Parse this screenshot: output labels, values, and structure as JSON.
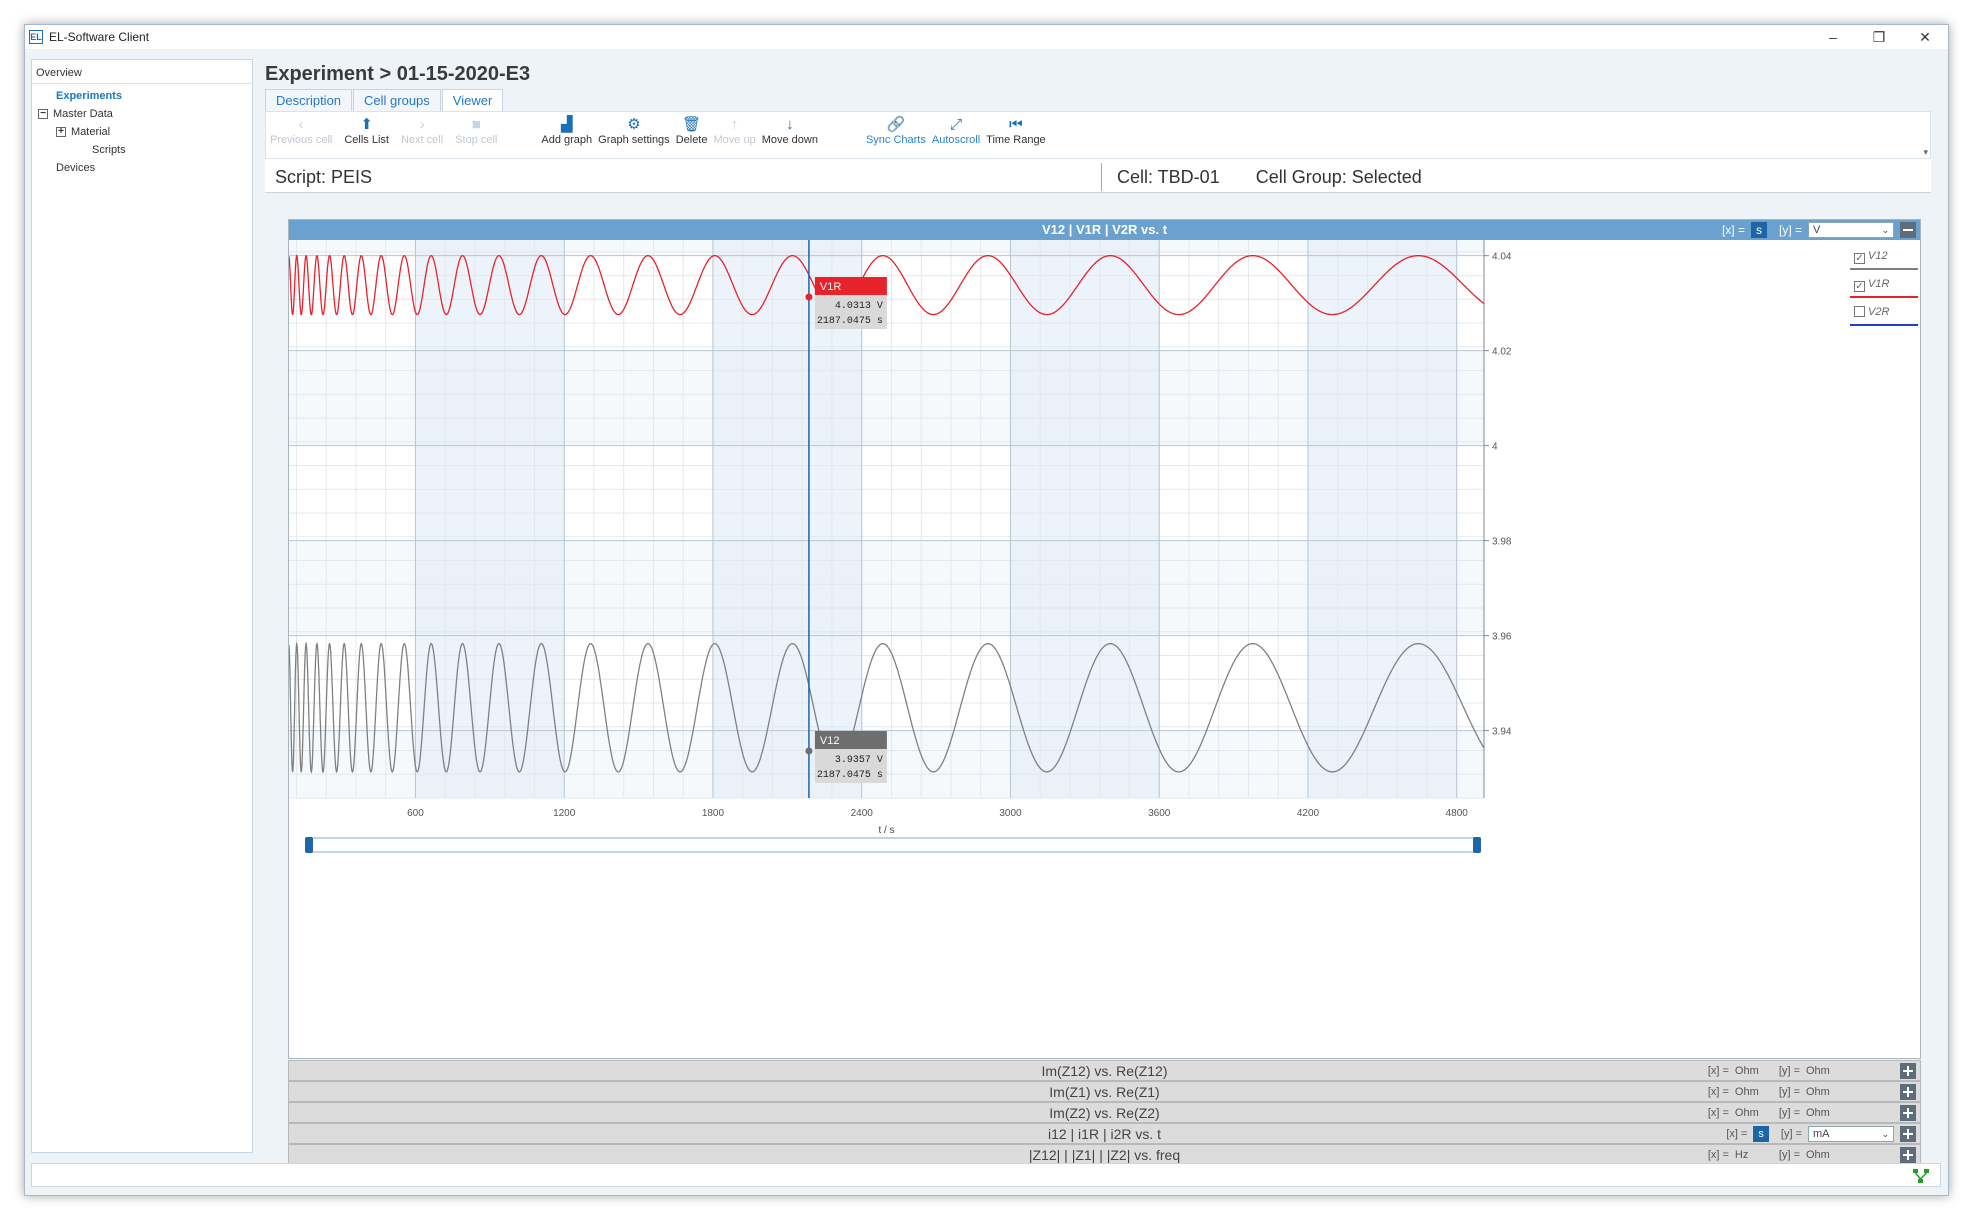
{
  "window": {
    "logo": "EL",
    "title": "EL-Software Client",
    "controls": [
      "–",
      "❐",
      "✕"
    ]
  },
  "sidebar": {
    "header": "Overview",
    "items": [
      {
        "label": "Experiments",
        "active": true,
        "indent": 0,
        "toggle": ""
      },
      {
        "label": "Master Data",
        "indent": 0,
        "toggle": "−"
      },
      {
        "label": "Material",
        "indent": 1,
        "toggle": "+"
      },
      {
        "label": "Scripts",
        "indent": 2,
        "toggle": ""
      },
      {
        "label": "Devices",
        "indent": 0,
        "toggle": ""
      }
    ]
  },
  "breadcrumb": "Experiment > 01-15-2020-E3",
  "tabs": [
    {
      "label": "Description",
      "selected": false
    },
    {
      "label": "Cell groups",
      "selected": false
    },
    {
      "label": "Viewer",
      "selected": true
    }
  ],
  "toolbar": [
    {
      "label": "Previous cell",
      "icon": "chevron-left-icon",
      "glyph": "‹",
      "disabled": true
    },
    {
      "label": "Cells List",
      "icon": "arrow-up-icon",
      "glyph": "⬆",
      "disabled": false
    },
    {
      "label": "Next cell",
      "icon": "chevron-right-icon",
      "glyph": "›",
      "disabled": true
    },
    {
      "label": "Stop cell",
      "icon": "stop-icon",
      "glyph": "■",
      "disabled": true
    },
    {
      "label": "Add graph",
      "icon": "chart-icon",
      "glyph": "▟",
      "disabled": false
    },
    {
      "label": "Graph settings",
      "icon": "gear-icon",
      "glyph": "⚙",
      "disabled": false
    },
    {
      "label": "Delete",
      "icon": "trash-icon",
      "glyph": "🗑",
      "disabled": false
    },
    {
      "label": "Move up",
      "icon": "arrow-up-icon",
      "glyph": "↑",
      "disabled": true
    },
    {
      "label": "Move down",
      "icon": "arrow-down-icon",
      "glyph": "↓",
      "disabled": false
    },
    {
      "label": "Sync Charts",
      "icon": "link-icon",
      "glyph": "🔗",
      "disabled": false,
      "blue": true
    },
    {
      "label": "Autoscroll",
      "icon": "expand-icon",
      "glyph": "⤢",
      "disabled": false,
      "blue": true
    },
    {
      "label": "Time Range",
      "icon": "skip-icon",
      "glyph": "⏮",
      "disabled": false
    }
  ],
  "script_label": "Script: PEIS",
  "cell_label": "Cell:  TBD-01",
  "cell_group_label": "Cell Group:  Selected",
  "main_graph": {
    "title": "V12 | V1R | V2R vs. t",
    "x_unit_label": "[x] =",
    "x_unit": "s",
    "y_unit_label": "[y] =",
    "y_unit": "V",
    "legend": [
      {
        "name": "V12",
        "checked": true,
        "color": "#808080"
      },
      {
        "name": "V1R",
        "checked": true,
        "color": "#e8222a"
      },
      {
        "name": "V2R",
        "checked": false,
        "color": "#1d3fd8"
      }
    ]
  },
  "chart_data": {
    "type": "line",
    "title": "V12 | V1R | V2R vs. t",
    "xlabel": "t / s",
    "ylabel": "",
    "xlim": [
      90,
      4910
    ],
    "ylim": [
      3.9258,
      4.0433
    ],
    "x_ticks": [
      600,
      1200,
      1800,
      2400,
      3000,
      3600,
      4200,
      4800
    ],
    "y_ticks": [
      4.04,
      4.02,
      4,
      3.98,
      3.96,
      3.94
    ],
    "y_tick_labels": [
      "4.04",
      "4.02",
      "4",
      "3.98",
      "3.96",
      "3.94"
    ],
    "series": [
      {
        "name": "V1R",
        "color": "#e8222a",
        "center": 4.0338,
        "amplitude": 0.0062,
        "t_start": 90,
        "t_end": 4910,
        "t_phase0": 90,
        "period_start": 30,
        "period_end": 760
      },
      {
        "name": "V12",
        "color": "#808080",
        "center": 3.9448,
        "amplitude": 0.0135,
        "t_start": 90,
        "t_end": 4910,
        "t_phase0": 90,
        "period_start": 30,
        "period_end": 760
      }
    ],
    "cursor": {
      "x": 2187.0475,
      "readouts": [
        {
          "series": "V1R",
          "value": "4.0313 V",
          "time": "2187.0475 s",
          "y": 4.0313,
          "color": "#e8222a"
        },
        {
          "series": "V12",
          "value": "3.9357 V",
          "time": "2187.0475 s",
          "y": 3.9357,
          "color": "#6e6e6e"
        }
      ]
    }
  },
  "collapsed_graphs": [
    {
      "title": "Im(Z12) vs. Re(Z12)",
      "x_label": "[x] =",
      "x_unit": "Ohm",
      "y_label": "[y] =",
      "y_unit": "Ohm",
      "selector": false
    },
    {
      "title": "Im(Z1) vs. Re(Z1)",
      "x_label": "[x] =",
      "x_unit": "Ohm",
      "y_label": "[y] =",
      "y_unit": "Ohm",
      "selector": false
    },
    {
      "title": "Im(Z2) vs. Re(Z2)",
      "x_label": "[x] =",
      "x_unit": "Ohm",
      "y_label": "[y] =",
      "y_unit": "Ohm",
      "selector": false
    },
    {
      "title": "i12 | i1R | i2R vs. t",
      "x_label": "[x] =",
      "x_unit": "s",
      "y_label": "[y] =",
      "y_unit": "mA",
      "selector": true
    },
    {
      "title": "|Z12| | |Z1| | |Z2| vs. freq",
      "x_label": "[x] =",
      "x_unit": "Hz",
      "y_label": "[y] =",
      "y_unit": "Ohm",
      "selector": false
    }
  ]
}
